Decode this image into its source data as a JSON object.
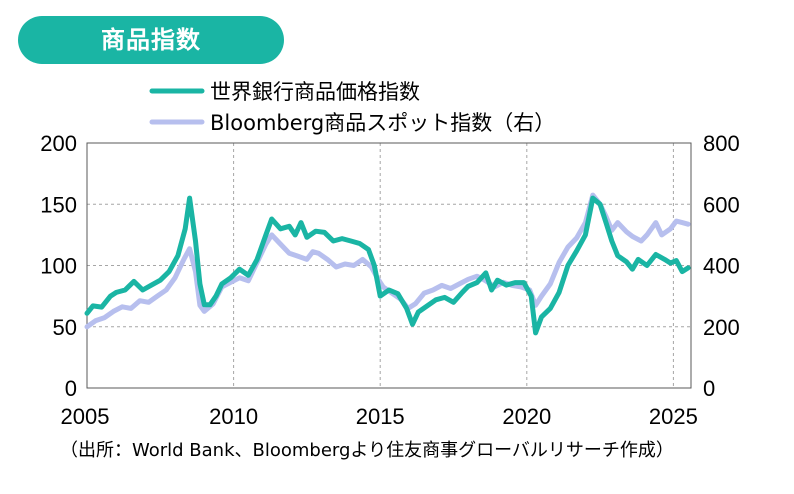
{
  "title_badge": "商品指数",
  "source_note": "（出所：World Bank、Bloombergより住友商事グローバルリサーチ作成）",
  "colors": {
    "badge": "#1ab5a4",
    "series_wb": "#1ab5a4",
    "series_bbg": "#b7bfee",
    "grid": "#a6a6a6"
  },
  "chart_data": {
    "type": "line",
    "x_axis": {
      "min": 2005,
      "max": 2025.6,
      "ticks": [
        "2005",
        "2010",
        "2015",
        "2020",
        "2025"
      ],
      "tick_values": [
        2005,
        2010,
        2015,
        2020,
        2025
      ]
    },
    "y_left": {
      "min": 0,
      "max": 200,
      "ticks": [
        "0",
        "50",
        "100",
        "150",
        "200"
      ],
      "tick_values": [
        0,
        50,
        100,
        150,
        200
      ]
    },
    "y_right": {
      "min": 0,
      "max": 800,
      "ticks": [
        "0",
        "200",
        "400",
        "600",
        "800"
      ],
      "tick_values": [
        0,
        200,
        400,
        600,
        800
      ]
    },
    "grid": true,
    "legend_position": "top",
    "series": [
      {
        "name": "世界銀行商品価格指数",
        "axis": "left",
        "color": "#1ab5a4",
        "points": [
          [
            2005.0,
            61
          ],
          [
            2005.2,
            67
          ],
          [
            2005.5,
            66
          ],
          [
            2005.8,
            75
          ],
          [
            2006.0,
            78
          ],
          [
            2006.3,
            80
          ],
          [
            2006.6,
            87
          ],
          [
            2006.9,
            80
          ],
          [
            2007.2,
            84
          ],
          [
            2007.5,
            88
          ],
          [
            2007.8,
            95
          ],
          [
            2008.1,
            108
          ],
          [
            2008.35,
            130
          ],
          [
            2008.5,
            155
          ],
          [
            2008.7,
            120
          ],
          [
            2008.85,
            85
          ],
          [
            2009.0,
            68
          ],
          [
            2009.2,
            68
          ],
          [
            2009.4,
            75
          ],
          [
            2009.6,
            85
          ],
          [
            2009.9,
            90
          ],
          [
            2010.2,
            97
          ],
          [
            2010.5,
            92
          ],
          [
            2010.8,
            105
          ],
          [
            2011.1,
            125
          ],
          [
            2011.3,
            138
          ],
          [
            2011.6,
            130
          ],
          [
            2011.9,
            132
          ],
          [
            2012.1,
            125
          ],
          [
            2012.3,
            135
          ],
          [
            2012.5,
            123
          ],
          [
            2012.8,
            128
          ],
          [
            2013.1,
            127
          ],
          [
            2013.4,
            120
          ],
          [
            2013.7,
            122
          ],
          [
            2014.0,
            120
          ],
          [
            2014.3,
            118
          ],
          [
            2014.6,
            113
          ],
          [
            2014.8,
            100
          ],
          [
            2015.0,
            75
          ],
          [
            2015.3,
            80
          ],
          [
            2015.6,
            77
          ],
          [
            2015.9,
            65
          ],
          [
            2016.1,
            52
          ],
          [
            2016.3,
            62
          ],
          [
            2016.6,
            67
          ],
          [
            2016.9,
            72
          ],
          [
            2017.2,
            74
          ],
          [
            2017.5,
            70
          ],
          [
            2017.8,
            78
          ],
          [
            2018.0,
            83
          ],
          [
            2018.3,
            86
          ],
          [
            2018.6,
            94
          ],
          [
            2018.8,
            80
          ],
          [
            2019.0,
            88
          ],
          [
            2019.3,
            84
          ],
          [
            2019.6,
            86
          ],
          [
            2019.9,
            86
          ],
          [
            2020.15,
            75
          ],
          [
            2020.3,
            45
          ],
          [
            2020.5,
            58
          ],
          [
            2020.8,
            65
          ],
          [
            2021.1,
            78
          ],
          [
            2021.4,
            100
          ],
          [
            2021.7,
            112
          ],
          [
            2022.0,
            125
          ],
          [
            2022.25,
            155
          ],
          [
            2022.5,
            150
          ],
          [
            2022.7,
            135
          ],
          [
            2022.9,
            120
          ],
          [
            2023.1,
            108
          ],
          [
            2023.4,
            103
          ],
          [
            2023.6,
            97
          ],
          [
            2023.8,
            105
          ],
          [
            2024.1,
            100
          ],
          [
            2024.4,
            109
          ],
          [
            2024.7,
            105
          ],
          [
            2024.9,
            102
          ],
          [
            2025.1,
            104
          ],
          [
            2025.3,
            95
          ],
          [
            2025.5,
            98
          ]
        ]
      },
      {
        "name": "Bloomberg商品スポット指数（右）",
        "axis": "right",
        "color": "#b7bfee",
        "points": [
          [
            2005.0,
            200
          ],
          [
            2005.3,
            220
          ],
          [
            2005.6,
            230
          ],
          [
            2005.9,
            250
          ],
          [
            2006.2,
            265
          ],
          [
            2006.5,
            260
          ],
          [
            2006.8,
            285
          ],
          [
            2007.1,
            280
          ],
          [
            2007.4,
            300
          ],
          [
            2007.7,
            320
          ],
          [
            2008.0,
            360
          ],
          [
            2008.3,
            420
          ],
          [
            2008.5,
            455
          ],
          [
            2008.7,
            380
          ],
          [
            2008.85,
            270
          ],
          [
            2009.0,
            250
          ],
          [
            2009.3,
            275
          ],
          [
            2009.6,
            330
          ],
          [
            2009.9,
            345
          ],
          [
            2010.2,
            360
          ],
          [
            2010.5,
            350
          ],
          [
            2010.8,
            410
          ],
          [
            2011.1,
            470
          ],
          [
            2011.3,
            500
          ],
          [
            2011.6,
            470
          ],
          [
            2011.9,
            440
          ],
          [
            2012.2,
            430
          ],
          [
            2012.5,
            420
          ],
          [
            2012.7,
            445
          ],
          [
            2012.9,
            440
          ],
          [
            2013.2,
            420
          ],
          [
            2013.5,
            395
          ],
          [
            2013.8,
            405
          ],
          [
            2014.1,
            400
          ],
          [
            2014.4,
            420
          ],
          [
            2014.7,
            395
          ],
          [
            2014.9,
            360
          ],
          [
            2015.1,
            330
          ],
          [
            2015.4,
            310
          ],
          [
            2015.7,
            290
          ],
          [
            2015.95,
            260
          ],
          [
            2016.2,
            275
          ],
          [
            2016.5,
            310
          ],
          [
            2016.8,
            320
          ],
          [
            2017.1,
            335
          ],
          [
            2017.4,
            325
          ],
          [
            2017.7,
            340
          ],
          [
            2018.0,
            355
          ],
          [
            2018.3,
            365
          ],
          [
            2018.6,
            350
          ],
          [
            2018.9,
            330
          ],
          [
            2019.2,
            345
          ],
          [
            2019.5,
            335
          ],
          [
            2019.8,
            330
          ],
          [
            2020.1,
            320
          ],
          [
            2020.3,
            270
          ],
          [
            2020.5,
            300
          ],
          [
            2020.8,
            340
          ],
          [
            2021.1,
            410
          ],
          [
            2021.4,
            460
          ],
          [
            2021.7,
            490
          ],
          [
            2022.0,
            540
          ],
          [
            2022.25,
            630
          ],
          [
            2022.5,
            600
          ],
          [
            2022.7,
            560
          ],
          [
            2022.9,
            515
          ],
          [
            2023.1,
            540
          ],
          [
            2023.4,
            510
          ],
          [
            2023.6,
            495
          ],
          [
            2023.9,
            480
          ],
          [
            2024.1,
            500
          ],
          [
            2024.4,
            540
          ],
          [
            2024.6,
            500
          ],
          [
            2024.9,
            520
          ],
          [
            2025.1,
            545
          ],
          [
            2025.3,
            540
          ],
          [
            2025.5,
            535
          ]
        ]
      }
    ]
  }
}
